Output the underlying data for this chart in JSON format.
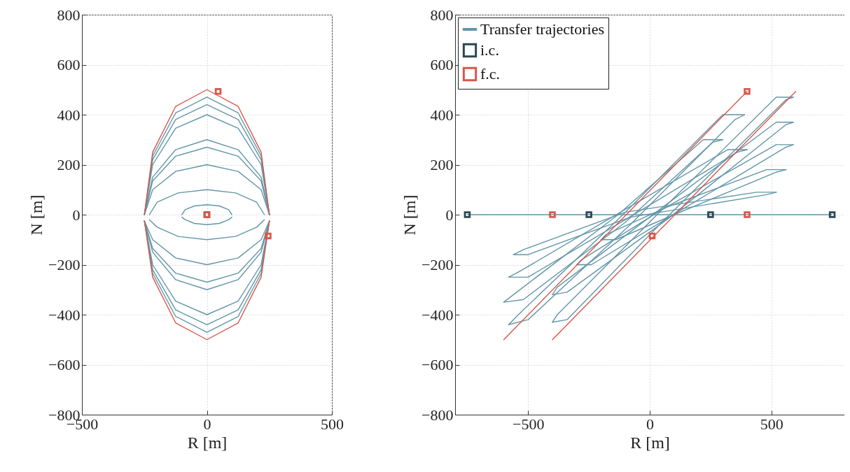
{
  "chart_data": [
    {
      "type": "line",
      "xlabel": "R [m]",
      "ylabel": "N [m]",
      "xlim": [
        -500,
        500
      ],
      "ylim": [
        -800,
        800
      ],
      "xticks": [
        -500,
        0,
        500
      ],
      "yticks": [
        -800,
        -600,
        -400,
        -200,
        0,
        200,
        400,
        600,
        800
      ],
      "grid": true,
      "legend": false,
      "line_style": "solid",
      "series": [
        {
          "color": "#6296a8",
          "x": [
            -250,
            -217,
            -125,
            0,
            125,
            217,
            250
          ],
          "values": [
            0,
            235,
            407,
            470,
            407,
            235,
            0
          ]
        },
        {
          "color": "#6296a8",
          "x": [
            -250,
            -217,
            -125,
            0,
            125,
            217,
            250
          ],
          "values": [
            -25,
            -235,
            -407,
            -470,
            -407,
            -235,
            -25
          ]
        },
        {
          "color": "#6296a8",
          "x": [
            -250,
            -217,
            -125,
            0,
            125,
            217,
            250
          ],
          "values": [
            0,
            220,
            381,
            440,
            381,
            220,
            0
          ]
        },
        {
          "color": "#6296a8",
          "x": [
            -250,
            -217,
            -125,
            0,
            125,
            217,
            250
          ],
          "values": [
            -25,
            -220,
            -381,
            -440,
            -381,
            -220,
            -25
          ]
        },
        {
          "color": "#6296a8",
          "x": [
            -250,
            -217,
            -125,
            0,
            125,
            217,
            250
          ],
          "values": [
            0,
            200,
            346,
            400,
            346,
            200,
            0
          ]
        },
        {
          "color": "#6296a8",
          "x": [
            -250,
            -217,
            -125,
            0,
            125,
            217,
            250
          ],
          "values": [
            -25,
            -200,
            -346,
            -400,
            -346,
            -200,
            -25
          ]
        },
        {
          "color": "#6296a8",
          "x": [
            -250,
            -217,
            -125,
            0,
            125,
            217,
            250
          ],
          "values": [
            0,
            150,
            260,
            300,
            260,
            150,
            0
          ]
        },
        {
          "color": "#6296a8",
          "x": [
            -250,
            -217,
            -125,
            0,
            125,
            217,
            250
          ],
          "values": [
            -25,
            -150,
            -260,
            -300,
            -260,
            -150,
            -25
          ]
        },
        {
          "color": "#6296a8",
          "x": [
            -250,
            -217,
            -125,
            0,
            125,
            217,
            250
          ],
          "values": [
            0,
            135,
            234,
            270,
            234,
            135,
            0
          ]
        },
        {
          "color": "#6296a8",
          "x": [
            -250,
            -217,
            -125,
            0,
            125,
            217,
            250
          ],
          "values": [
            -25,
            -135,
            -234,
            -270,
            -234,
            -135,
            -25
          ]
        },
        {
          "color": "#6296a8",
          "x": [
            -250,
            -217,
            -125,
            0,
            125,
            217,
            250
          ],
          "values": [
            0,
            100,
            173,
            200,
            173,
            100,
            0
          ]
        },
        {
          "color": "#6296a8",
          "x": [
            -250,
            -217,
            -125,
            0,
            125,
            217,
            250
          ],
          "values": [
            -25,
            -100,
            -173,
            -200,
            -173,
            -100,
            -25
          ]
        },
        {
          "color": "#6296a8",
          "x": [
            -230,
            -199,
            -115,
            0,
            115,
            199,
            230
          ],
          "values": [
            0,
            50,
            87,
            100,
            87,
            50,
            0
          ]
        },
        {
          "color": "#6296a8",
          "x": [
            -230,
            -199,
            -115,
            0,
            115,
            199,
            230
          ],
          "values": [
            -20,
            -50,
            -87,
            -100,
            -87,
            -50,
            -20
          ]
        },
        {
          "color": "#6296a8",
          "x": [
            -100,
            -87,
            -50,
            0,
            50,
            87,
            100
          ],
          "values": [
            0,
            20,
            35,
            40,
            35,
            20,
            0
          ]
        },
        {
          "color": "#6296a8",
          "x": [
            -100,
            -87,
            -50,
            0,
            50,
            87,
            100
          ],
          "values": [
            -10,
            -20,
            -35,
            -40,
            -35,
            -20,
            -10
          ]
        },
        {
          "color": "#d9574a",
          "x": [
            -250,
            -217,
            -125,
            0,
            125,
            217,
            250
          ],
          "values": [
            0,
            250,
            433,
            500,
            433,
            250,
            0
          ]
        },
        {
          "color": "#d9574a",
          "x": [
            -250,
            -217,
            -125,
            0,
            125,
            217,
            250
          ],
          "values": [
            -25,
            -250,
            -433,
            -500,
            -433,
            -250,
            -25
          ]
        },
        {
          "type": "scatter",
          "marker": "square",
          "color": "#2b4754",
          "x": [
            0
          ],
          "values": [
            0
          ]
        },
        {
          "type": "scatter",
          "marker": "square",
          "color": "#d9574a",
          "x": [
            0,
            45,
            245
          ],
          "values": [
            0,
            493,
            -85
          ]
        }
      ]
    },
    {
      "type": "line",
      "xlabel": "R [m]",
      "ylabel": "N [m]",
      "xlim": [
        -800,
        800
      ],
      "ylim": [
        -800,
        800
      ],
      "xticks": [
        -500,
        0,
        500
      ],
      "yticks": [
        -800,
        -600,
        -400,
        -200,
        0,
        200,
        400,
        600,
        800
      ],
      "grid": true,
      "legend": "top left",
      "line_style": "solid",
      "series": [
        {
          "name": "Transfer trajectories",
          "color": "#6296a8",
          "x": [
            -750,
            750
          ],
          "values": [
            0,
            0
          ]
        },
        {
          "color": "#6296a8",
          "x": [
            -580,
            -500,
            -80,
            350,
            390
          ],
          "values": [
            -440,
            -420,
            -40,
            380,
            400
          ]
        },
        {
          "color": "#6296a8",
          "x": [
            -580,
            -540,
            -110,
            300,
            390
          ],
          "values": [
            -440,
            -400,
            0,
            400,
            400
          ]
        },
        {
          "color": "#6296a8",
          "x": [
            -600,
            -520,
            -100,
            260,
            300
          ],
          "values": [
            -350,
            -340,
            -30,
            290,
            300
          ]
        },
        {
          "color": "#6296a8",
          "x": [
            -600,
            -560,
            -130,
            220,
            300
          ],
          "values": [
            -350,
            -320,
            0,
            300,
            300
          ]
        },
        {
          "color": "#6296a8",
          "x": [
            -580,
            -500,
            -100,
            360,
            400
          ],
          "values": [
            -250,
            -250,
            -20,
            250,
            260
          ]
        },
        {
          "color": "#6296a8",
          "x": [
            -580,
            -540,
            -120,
            320,
            400
          ],
          "values": [
            -250,
            -230,
            10,
            260,
            260
          ]
        },
        {
          "color": "#6296a8",
          "x": [
            -560,
            -500,
            -80,
            480,
            520
          ],
          "values": [
            -160,
            -160,
            -10,
            80,
            90
          ]
        },
        {
          "color": "#6296a8",
          "x": [
            -560,
            -520,
            -100,
            440,
            520
          ],
          "values": [
            -160,
            -140,
            10,
            90,
            90
          ]
        },
        {
          "color": "#6296a8",
          "x": [
            -400,
            -340,
            60,
            560,
            590
          ],
          "values": [
            -430,
            -420,
            -20,
            460,
            470
          ]
        },
        {
          "color": "#6296a8",
          "x": [
            -400,
            -380,
            40,
            520,
            590
          ],
          "values": [
            -430,
            -400,
            10,
            470,
            470
          ]
        },
        {
          "color": "#6296a8",
          "x": [
            -400,
            -340,
            70,
            560,
            590
          ],
          "values": [
            -320,
            -310,
            -20,
            360,
            370
          ]
        },
        {
          "color": "#6296a8",
          "x": [
            -400,
            -380,
            40,
            520,
            590
          ],
          "values": [
            -320,
            -290,
            20,
            370,
            370
          ]
        },
        {
          "color": "#6296a8",
          "x": [
            -300,
            -240,
            80,
            560,
            590
          ],
          "values": [
            -200,
            -200,
            -10,
            270,
            280
          ]
        },
        {
          "color": "#6296a8",
          "x": [
            -300,
            -280,
            50,
            520,
            590
          ],
          "values": [
            -200,
            -180,
            20,
            280,
            280
          ]
        },
        {
          "color": "#6296a8",
          "x": [
            -200,
            -140,
            100,
            520,
            560
          ],
          "values": [
            -100,
            -100,
            0,
            170,
            180
          ]
        },
        {
          "color": "#6296a8",
          "x": [
            -200,
            -180,
            70,
            480,
            560
          ],
          "values": [
            -100,
            -80,
            30,
            180,
            180
          ]
        },
        {
          "color": "#d9574a",
          "x": [
            -600,
            400
          ],
          "values": [
            -500,
            493
          ]
        },
        {
          "color": "#d9574a",
          "x": [
            -400,
            600
          ],
          "values": [
            -500,
            493
          ]
        },
        {
          "name": "i.c.",
          "type": "scatter",
          "marker": "square",
          "color": "#2b4754",
          "x": [
            -750,
            -250,
            250,
            750
          ],
          "values": [
            0,
            0,
            0,
            0
          ]
        },
        {
          "name": "f.c.",
          "type": "scatter",
          "marker": "square",
          "color": "#d9574a",
          "x": [
            -400,
            400,
            400,
            10
          ],
          "values": [
            0,
            0,
            493,
            -85
          ]
        }
      ]
    }
  ]
}
